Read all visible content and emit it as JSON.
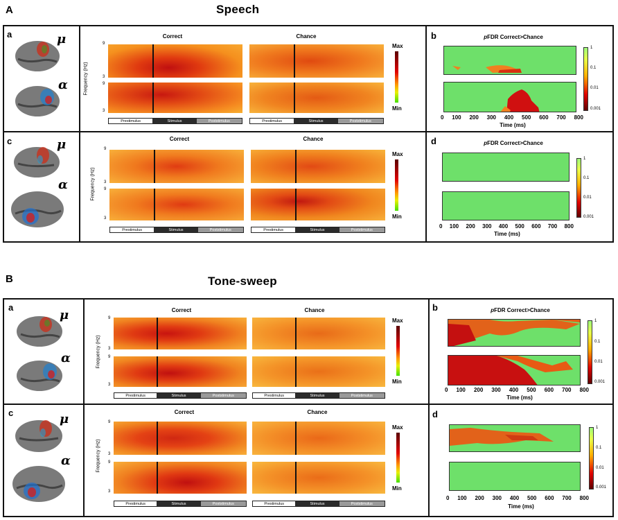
{
  "sections": [
    {
      "letter": "A",
      "title": "Speech"
    },
    {
      "letter": "B",
      "title": "Tone-sweep"
    }
  ],
  "panels": {
    "a": "a",
    "b": "b",
    "c": "c",
    "d": "d"
  },
  "rhythms": {
    "mu": "μ",
    "alpha": "α"
  },
  "columns": {
    "correct": "Correct",
    "chance": "Chance"
  },
  "ylabel": "Frequency (Hz)",
  "ytick_top": "9",
  "ytick_bottom": "3",
  "timebar": {
    "pre": "Prestimulus",
    "stim": "Stimulus",
    "post": "Poststimulus"
  },
  "colorbar": {
    "max": "Max",
    "min": "Min"
  },
  "pfdr": {
    "title_italic": "p",
    "title_rest": "FDR Correct>Chance",
    "ticks": [
      "1",
      "0.1",
      "0.01",
      "0.001"
    ],
    "xlabel": "Time (ms)",
    "xticks": [
      "0",
      "100",
      "200",
      "300",
      "400",
      "500",
      "600",
      "700",
      "800"
    ]
  },
  "colors": {
    "heat_bg": "#f07a1e",
    "nonsig": "#6ee06a",
    "sig": "#d01010"
  }
}
